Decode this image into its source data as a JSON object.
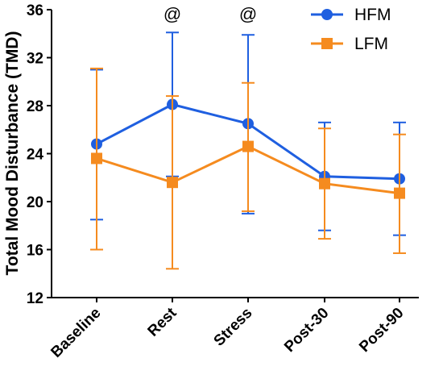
{
  "chart_data": {
    "type": "line",
    "title": "",
    "xlabel": "",
    "ylabel": "Total Mood Disturbance (TMD)",
    "ylim": [
      12,
      36
    ],
    "yticks": [
      12,
      16,
      20,
      24,
      28,
      32,
      36
    ],
    "categories": [
      "Baseline",
      "Rest",
      "Stress",
      "Post-30",
      "Post-90"
    ],
    "legend_position": "top-right",
    "grid": false,
    "series": [
      {
        "name": "HFM",
        "color": "#1f5fe0",
        "marker": "circle",
        "values": [
          24.8,
          28.1,
          26.5,
          22.1,
          21.9
        ],
        "error_upper": [
          31.0,
          34.1,
          33.9,
          26.6,
          26.6
        ],
        "error_lower": [
          18.5,
          22.1,
          19.0,
          17.6,
          17.2
        ]
      },
      {
        "name": "LFM",
        "color": "#f58b1f",
        "marker": "square",
        "values": [
          23.6,
          21.6,
          24.6,
          21.5,
          20.7
        ],
        "error_upper": [
          31.1,
          28.8,
          29.9,
          26.1,
          25.6
        ],
        "error_lower": [
          16.0,
          14.4,
          19.2,
          16.9,
          15.7
        ]
      }
    ],
    "annotations": [
      {
        "category": "Rest",
        "text": "@"
      },
      {
        "category": "Stress",
        "text": "@"
      }
    ]
  }
}
